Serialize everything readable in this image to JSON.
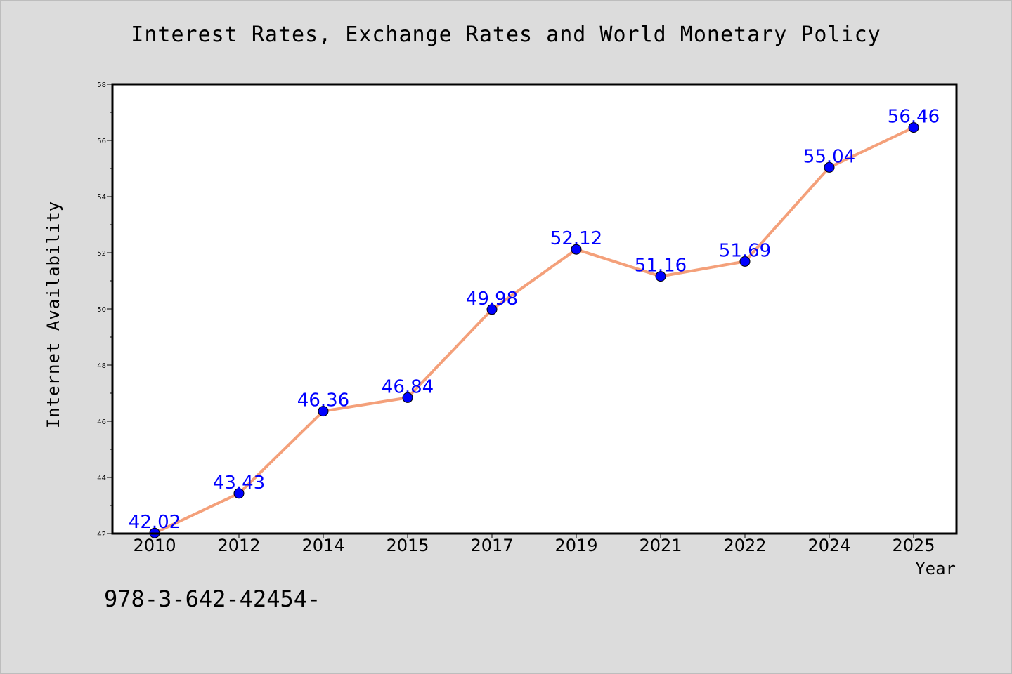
{
  "chart_data": {
    "type": "line",
    "title": "Interest Rates, Exchange Rates and World Monetary Policy",
    "xlabel": "Year",
    "ylabel": "Internet Availability",
    "categories": [
      "2010",
      "2012",
      "2014",
      "2015",
      "2017",
      "2019",
      "2021",
      "2022",
      "2024",
      "2025"
    ],
    "series": [
      {
        "values": [
          42.02,
          43.43,
          46.36,
          46.84,
          49.98,
          52.12,
          51.16,
          51.69,
          55.04,
          56.46
        ],
        "labels": [
          "42.02",
          "43.43",
          "46.36",
          "46.84",
          "49.98",
          "52.12",
          "51.16",
          "51.69",
          "55.04",
          "56.46"
        ],
        "line_color": "#f4a07a",
        "marker_color": "#0000ff"
      }
    ],
    "ylim": [
      42,
      58
    ],
    "yticks": [
      "42",
      "44",
      "46",
      "48",
      "50",
      "52",
      "54",
      "56",
      "58"
    ],
    "grid": false,
    "legend": "none"
  },
  "footnote": "978-3-642-42454-"
}
